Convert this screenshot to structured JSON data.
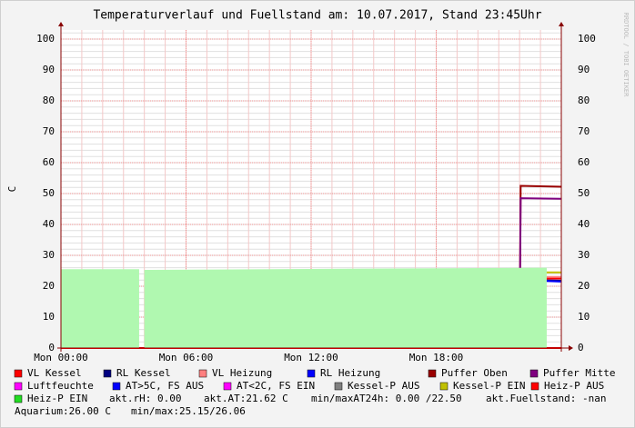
{
  "chart_data": {
    "type": "line",
    "title": "Temperaturverlauf und Fuellstand am: 10.07.2017, Stand 23:45Uhr",
    "ylabel": "C",
    "watermark": "RRDTOOL / TOBI OETIKER",
    "xlim": [
      0,
      24
    ],
    "xticks": [
      {
        "value": 0,
        "label": "Mon 00:00"
      },
      {
        "value": 6,
        "label": "Mon 06:00"
      },
      {
        "value": 12,
        "label": "Mon 12:00"
      },
      {
        "value": 18,
        "label": "Mon 18:00"
      }
    ],
    "ylim": [
      0,
      100
    ],
    "yticks": [
      0,
      10,
      20,
      30,
      40,
      50,
      60,
      70,
      80,
      90,
      100
    ],
    "grid": true,
    "x": [
      0,
      22,
      22.05,
      24
    ],
    "series": [
      {
        "name": "VL Kessel",
        "color": "#ff0000",
        "values": [
          0,
          0,
          22.5,
          22.5
        ]
      },
      {
        "name": "RL Kessel",
        "color": "#000080",
        "values": [
          0,
          0,
          22,
          21.8
        ]
      },
      {
        "name": "VL Heizung",
        "color": "#ff8080",
        "values": [
          0,
          0,
          23,
          23
        ]
      },
      {
        "name": "RL Heizung",
        "color": "#0000ff",
        "values": [
          0,
          0,
          22,
          21.5
        ]
      },
      {
        "name": "Puffer Oben",
        "color": "#990000",
        "values": [
          0,
          0,
          52.5,
          52.2
        ]
      },
      {
        "name": "Puffer Mitte",
        "color": "#800080",
        "values": [
          0,
          0,
          48.5,
          48.3
        ]
      },
      {
        "name": "Luftfeuchte",
        "color": "#ff00ff",
        "values": [
          0,
          0,
          0,
          0
        ]
      },
      {
        "name": "AT>5C, FS AUS",
        "color": "#0000ff",
        "values": [
          0,
          0,
          0,
          0
        ]
      },
      {
        "name": "AT<2C, FS EIN",
        "color": "#ff00ff",
        "values": [
          0,
          0,
          0,
          0
        ]
      },
      {
        "name": "Kessel-P AUS",
        "color": "#808080",
        "values": [
          0,
          0,
          0,
          0
        ]
      },
      {
        "name": "Kessel-P EIN",
        "color": "#c0c000",
        "values": [
          0,
          0,
          24.5,
          24.5
        ]
      },
      {
        "name": "Heiz-P AUS",
        "color": "#ff0000",
        "values": [
          0,
          0,
          0,
          0
        ]
      },
      {
        "name": "Heiz-P EIN",
        "color": "#22dd22",
        "area_color": "#b0f8b0",
        "area": true,
        "x": [
          0,
          3.75,
          3.9,
          4.0,
          23.3
        ],
        "values": [
          25.5,
          25.5,
          null,
          25.3,
          26
        ]
      }
    ],
    "legend_notes": [
      "akt.rH: 0.00",
      "akt.AT:21.62 C",
      "min/maxAT24h: 0.00 /22.50",
      "akt.Fuellstand: -nan",
      "Aquarium:26.00 C",
      "min/max:25.15/26.06"
    ]
  }
}
